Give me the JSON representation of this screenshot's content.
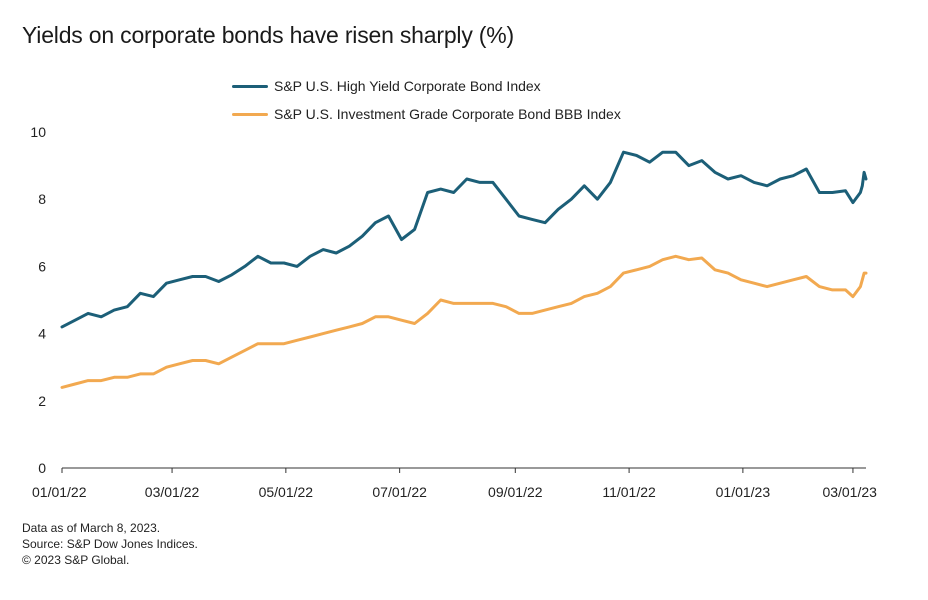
{
  "title": "Yields on corporate bonds have risen sharply (%)",
  "footnotes": [
    "Data as of March 8, 2023.",
    "Source: S&P Dow Jones Indices.",
    "© 2023 S&P Global."
  ],
  "chart_data": {
    "type": "line",
    "title": "Yields on corporate bonds have risen sharply (%)",
    "xlabel": "",
    "ylabel": "",
    "x_range": [
      "2022-01-01",
      "2023-03-08"
    ],
    "ylim": [
      0,
      10
    ],
    "yticks": [
      0,
      2,
      4,
      6,
      8,
      10
    ],
    "xticks": [
      {
        "date": "2022-01-01",
        "label": "01/01/22"
      },
      {
        "date": "2022-03-01",
        "label": "03/01/22"
      },
      {
        "date": "2022-05-01",
        "label": "05/01/22"
      },
      {
        "date": "2022-07-01",
        "label": "07/01/22"
      },
      {
        "date": "2022-09-01",
        "label": "09/01/22"
      },
      {
        "date": "2022-11-01",
        "label": "11/01/22"
      },
      {
        "date": "2023-01-01",
        "label": "01/01/23"
      },
      {
        "date": "2023-03-01",
        "label": "03/01/23"
      }
    ],
    "grid": false,
    "legend_position": "top-center",
    "series": [
      {
        "name": "S&P U.S. High Yield Corporate Bond Index",
        "color": "#1c5f78",
        "points": [
          [
            "2022-01-01",
            4.2
          ],
          [
            "2022-01-08",
            4.4
          ],
          [
            "2022-01-15",
            4.6
          ],
          [
            "2022-01-22",
            4.5
          ],
          [
            "2022-01-29",
            4.7
          ],
          [
            "2022-02-05",
            4.8
          ],
          [
            "2022-02-12",
            5.2
          ],
          [
            "2022-02-19",
            5.1
          ],
          [
            "2022-02-26",
            5.5
          ],
          [
            "2022-03-05",
            5.6
          ],
          [
            "2022-03-12",
            5.7
          ],
          [
            "2022-03-19",
            5.7
          ],
          [
            "2022-03-26",
            5.55
          ],
          [
            "2022-04-02",
            5.75
          ],
          [
            "2022-04-09",
            6.0
          ],
          [
            "2022-04-16",
            6.3
          ],
          [
            "2022-04-23",
            6.1
          ],
          [
            "2022-04-30",
            6.1
          ],
          [
            "2022-05-07",
            6.0
          ],
          [
            "2022-05-14",
            6.3
          ],
          [
            "2022-05-21",
            6.5
          ],
          [
            "2022-05-28",
            6.4
          ],
          [
            "2022-06-04",
            6.6
          ],
          [
            "2022-06-11",
            6.9
          ],
          [
            "2022-06-18",
            7.3
          ],
          [
            "2022-06-25",
            7.5
          ],
          [
            "2022-07-02",
            6.8
          ],
          [
            "2022-07-09",
            7.1
          ],
          [
            "2022-07-16",
            8.2
          ],
          [
            "2022-07-23",
            8.3
          ],
          [
            "2022-07-30",
            8.2
          ],
          [
            "2022-08-06",
            8.6
          ],
          [
            "2022-08-13",
            8.5
          ],
          [
            "2022-08-20",
            8.5
          ],
          [
            "2022-08-27",
            8.0
          ],
          [
            "2022-09-03",
            7.5
          ],
          [
            "2022-09-10",
            7.4
          ],
          [
            "2022-09-17",
            7.3
          ],
          [
            "2022-09-24",
            7.7
          ],
          [
            "2022-10-01",
            8.0
          ],
          [
            "2022-10-08",
            8.4
          ],
          [
            "2022-10-15",
            8.0
          ],
          [
            "2022-10-22",
            8.5
          ],
          [
            "2022-10-29",
            9.4
          ],
          [
            "2022-11-05",
            9.3
          ],
          [
            "2022-11-12",
            9.1
          ],
          [
            "2022-11-19",
            9.4
          ],
          [
            "2022-11-26",
            9.4
          ],
          [
            "2022-12-03",
            9.0
          ],
          [
            "2022-12-10",
            9.15
          ],
          [
            "2022-12-17",
            8.8
          ],
          [
            "2022-12-24",
            8.6
          ],
          [
            "2022-12-31",
            8.7
          ],
          [
            "2023-01-07",
            8.5
          ],
          [
            "2023-01-14",
            8.4
          ],
          [
            "2023-01-21",
            8.6
          ],
          [
            "2023-01-28",
            8.7
          ],
          [
            "2023-02-04",
            8.9
          ],
          [
            "2023-02-11",
            8.2
          ],
          [
            "2023-02-18",
            8.2
          ],
          [
            "2023-02-25",
            8.25
          ],
          [
            "2023-03-01",
            7.9
          ],
          [
            "2023-03-05",
            8.2
          ],
          [
            "2023-03-06",
            8.4
          ],
          [
            "2023-03-07",
            8.8
          ],
          [
            "2023-03-08",
            8.6
          ]
        ]
      },
      {
        "name": "S&P U.S. Investment Grade Corporate Bond BBB Index",
        "color": "#f2a950",
        "points": [
          [
            "2022-01-01",
            2.4
          ],
          [
            "2022-01-08",
            2.5
          ],
          [
            "2022-01-15",
            2.6
          ],
          [
            "2022-01-22",
            2.6
          ],
          [
            "2022-01-29",
            2.7
          ],
          [
            "2022-02-05",
            2.7
          ],
          [
            "2022-02-12",
            2.8
          ],
          [
            "2022-02-19",
            2.8
          ],
          [
            "2022-02-26",
            3.0
          ],
          [
            "2022-03-05",
            3.1
          ],
          [
            "2022-03-12",
            3.2
          ],
          [
            "2022-03-19",
            3.2
          ],
          [
            "2022-03-26",
            3.1
          ],
          [
            "2022-04-02",
            3.3
          ],
          [
            "2022-04-09",
            3.5
          ],
          [
            "2022-04-16",
            3.7
          ],
          [
            "2022-04-23",
            3.7
          ],
          [
            "2022-04-30",
            3.7
          ],
          [
            "2022-05-07",
            3.8
          ],
          [
            "2022-05-14",
            3.9
          ],
          [
            "2022-05-21",
            4.0
          ],
          [
            "2022-05-28",
            4.1
          ],
          [
            "2022-06-04",
            4.2
          ],
          [
            "2022-06-11",
            4.3
          ],
          [
            "2022-06-18",
            4.5
          ],
          [
            "2022-06-25",
            4.5
          ],
          [
            "2022-07-02",
            4.4
          ],
          [
            "2022-07-09",
            4.3
          ],
          [
            "2022-07-16",
            4.6
          ],
          [
            "2022-07-23",
            5.0
          ],
          [
            "2022-07-30",
            4.9
          ],
          [
            "2022-08-06",
            4.9
          ],
          [
            "2022-08-13",
            4.9
          ],
          [
            "2022-08-20",
            4.9
          ],
          [
            "2022-08-27",
            4.8
          ],
          [
            "2022-09-03",
            4.6
          ],
          [
            "2022-09-10",
            4.6
          ],
          [
            "2022-09-17",
            4.7
          ],
          [
            "2022-09-24",
            4.8
          ],
          [
            "2022-10-01",
            4.9
          ],
          [
            "2022-10-08",
            5.1
          ],
          [
            "2022-10-15",
            5.2
          ],
          [
            "2022-10-22",
            5.4
          ],
          [
            "2022-10-29",
            5.8
          ],
          [
            "2022-11-05",
            5.9
          ],
          [
            "2022-11-12",
            6.0
          ],
          [
            "2022-11-19",
            6.2
          ],
          [
            "2022-11-26",
            6.3
          ],
          [
            "2022-12-03",
            6.2
          ],
          [
            "2022-12-10",
            6.25
          ],
          [
            "2022-12-17",
            5.9
          ],
          [
            "2022-12-24",
            5.8
          ],
          [
            "2022-12-31",
            5.6
          ],
          [
            "2023-01-07",
            5.5
          ],
          [
            "2023-01-14",
            5.4
          ],
          [
            "2023-01-21",
            5.5
          ],
          [
            "2023-01-28",
            5.6
          ],
          [
            "2023-02-04",
            5.7
          ],
          [
            "2023-02-11",
            5.4
          ],
          [
            "2023-02-18",
            5.3
          ],
          [
            "2023-02-25",
            5.3
          ],
          [
            "2023-03-01",
            5.1
          ],
          [
            "2023-03-05",
            5.4
          ],
          [
            "2023-03-06",
            5.6
          ],
          [
            "2023-03-07",
            5.8
          ],
          [
            "2023-03-08",
            5.8
          ]
        ]
      }
    ]
  }
}
